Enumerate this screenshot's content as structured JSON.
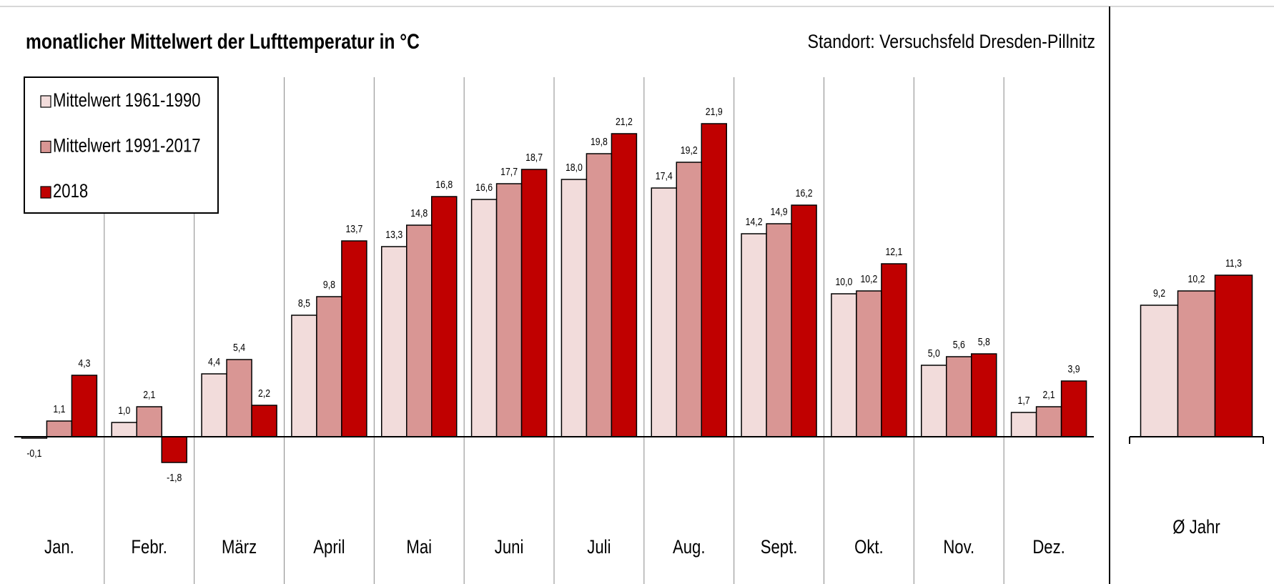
{
  "chart_data": [
    {
      "type": "bar",
      "title": "monatlicher Mittelwert der Lufttemperatur in °C",
      "subtitle": "Standort: Versuchsfeld Dresden-Pillnitz",
      "categories": [
        "Jan.",
        "Febr.",
        "März",
        "April",
        "Mai",
        "Juni",
        "Juli",
        "Aug.",
        "Sept.",
        "Okt.",
        "Nov.",
        "Dez."
      ],
      "series": [
        {
          "name": "Mittelwert 1961-1990",
          "color": "#f2dcdb",
          "values": [
            -0.1,
            1.0,
            4.4,
            8.5,
            13.3,
            16.6,
            18.0,
            17.4,
            14.2,
            10.0,
            5.0,
            1.7
          ],
          "value_labels": [
            "-0,1",
            "1,0",
            "4,4",
            "8,5",
            "13,3",
            "16,6",
            "18,0",
            "17,4",
            "14,2",
            "10,0",
            "5,0",
            "1,7"
          ]
        },
        {
          "name": "Mittelwert 1991-2017",
          "color": "#d99694",
          "values": [
            1.1,
            2.1,
            5.4,
            9.8,
            14.8,
            17.7,
            19.8,
            19.2,
            14.9,
            10.2,
            5.6,
            2.1
          ],
          "value_labels": [
            "1,1",
            "2,1",
            "5,4",
            "9,8",
            "14,8",
            "17,7",
            "19,8",
            "19,2",
            "14,9",
            "10,2",
            "5,6",
            "2,1"
          ]
        },
        {
          "name": "2018",
          "color": "#c00000",
          "values": [
            4.3,
            -1.8,
            2.2,
            13.7,
            16.8,
            18.7,
            21.2,
            21.9,
            16.2,
            12.1,
            5.8,
            3.9
          ],
          "value_labels": [
            "4,3",
            "-1,8",
            "2,2",
            "13,7",
            "16,8",
            "18,7",
            "21,2",
            "21,9",
            "16,2",
            "12,1",
            "5,8",
            "3,9"
          ]
        }
      ]
    },
    {
      "type": "bar",
      "categories": [
        "Ø Jahr"
      ],
      "series": [
        {
          "color": "#f2dcdb",
          "values": [
            9.2
          ],
          "value_labels": [
            "9,2"
          ]
        },
        {
          "color": "#d99694",
          "values": [
            10.2
          ],
          "value_labels": [
            "10,2"
          ]
        },
        {
          "color": "#c00000",
          "values": [
            11.3
          ],
          "value_labels": [
            "11,3"
          ]
        }
      ]
    }
  ]
}
